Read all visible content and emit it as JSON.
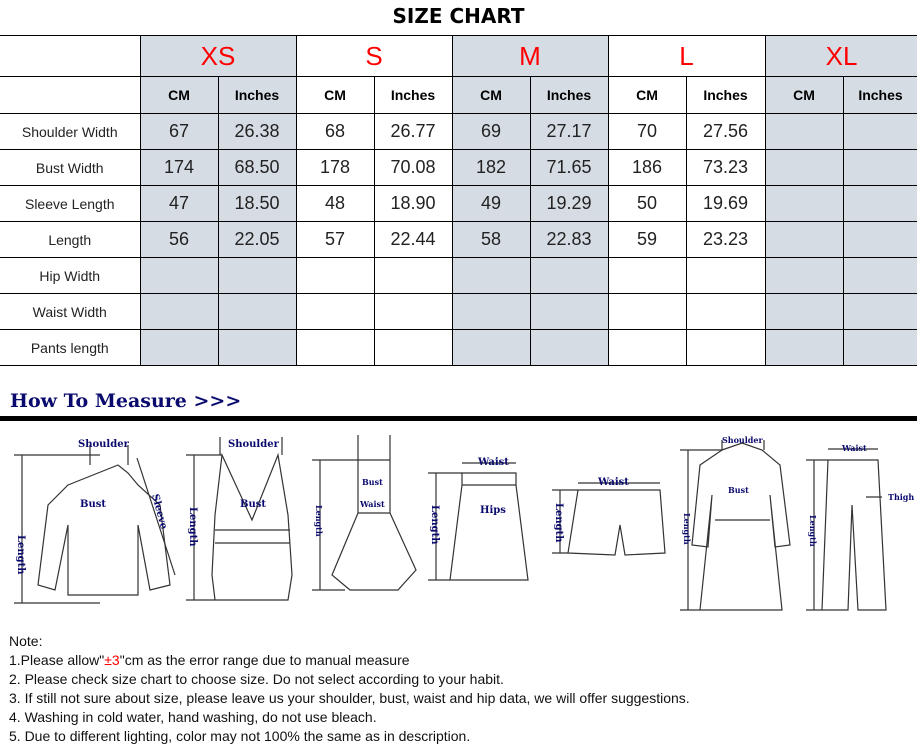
{
  "title": "SIZE CHART",
  "sizes": [
    "XS",
    "S",
    "M",
    "L",
    "XL"
  ],
  "units": {
    "cm": "CM",
    "inches": "Inches"
  },
  "rows": [
    {
      "label": "Shoulder Width",
      "values": [
        "67",
        "26.38",
        "68",
        "26.77",
        "69",
        "27.17",
        "70",
        "27.56",
        "",
        ""
      ]
    },
    {
      "label": "Bust Width",
      "values": [
        "174",
        "68.50",
        "178",
        "70.08",
        "182",
        "71.65",
        "186",
        "73.23",
        "",
        ""
      ]
    },
    {
      "label": "Sleeve Length",
      "values": [
        "47",
        "18.50",
        "48",
        "18.90",
        "49",
        "19.29",
        "50",
        "19.69",
        "",
        ""
      ]
    },
    {
      "label": "Length",
      "values": [
        "56",
        "22.05",
        "57",
        "22.44",
        "58",
        "22.83",
        "59",
        "23.23",
        "",
        ""
      ]
    },
    {
      "label": "Hip Width",
      "values": [
        "",
        "",
        "",
        "",
        "",
        "",
        "",
        "",
        "",
        ""
      ]
    },
    {
      "label": "Waist Width",
      "values": [
        "",
        "",
        "",
        "",
        "",
        "",
        "",
        "",
        "",
        ""
      ]
    },
    {
      "label": "Pants length",
      "values": [
        "",
        "",
        "",
        "",
        "",
        "",
        "",
        "",
        "",
        ""
      ]
    }
  ],
  "colors": {
    "size_label": "#ff0000",
    "shaded_column": "#d6dce4",
    "heading": "#0a0a6e"
  },
  "how_to_measure": {
    "heading": "How To Measure >>>",
    "labels": {
      "shoulder": "Shoulder",
      "bust": "Bust",
      "sleeve": "Sleeve",
      "length": "Length",
      "waist": "Waist",
      "hips": "Hips",
      "thigh": "Thigh"
    }
  },
  "notes": {
    "heading": "Note:",
    "line1_pre": "1.Please allow\"",
    "line1_red": "±3",
    "line1_post": "\"cm as the error range due to manual measure",
    "line2": "2. Please check size chart to choose size. Do not select according to your habit.",
    "line3": "3. If still not sure about size, please leave us your shoulder, bust, waist and hip data, we will offer suggestions.",
    "line4": "4. Washing in cold water, hand washing, do not use bleach.",
    "line5": "5. Due to different lighting, color may not 100% the same as in description."
  }
}
